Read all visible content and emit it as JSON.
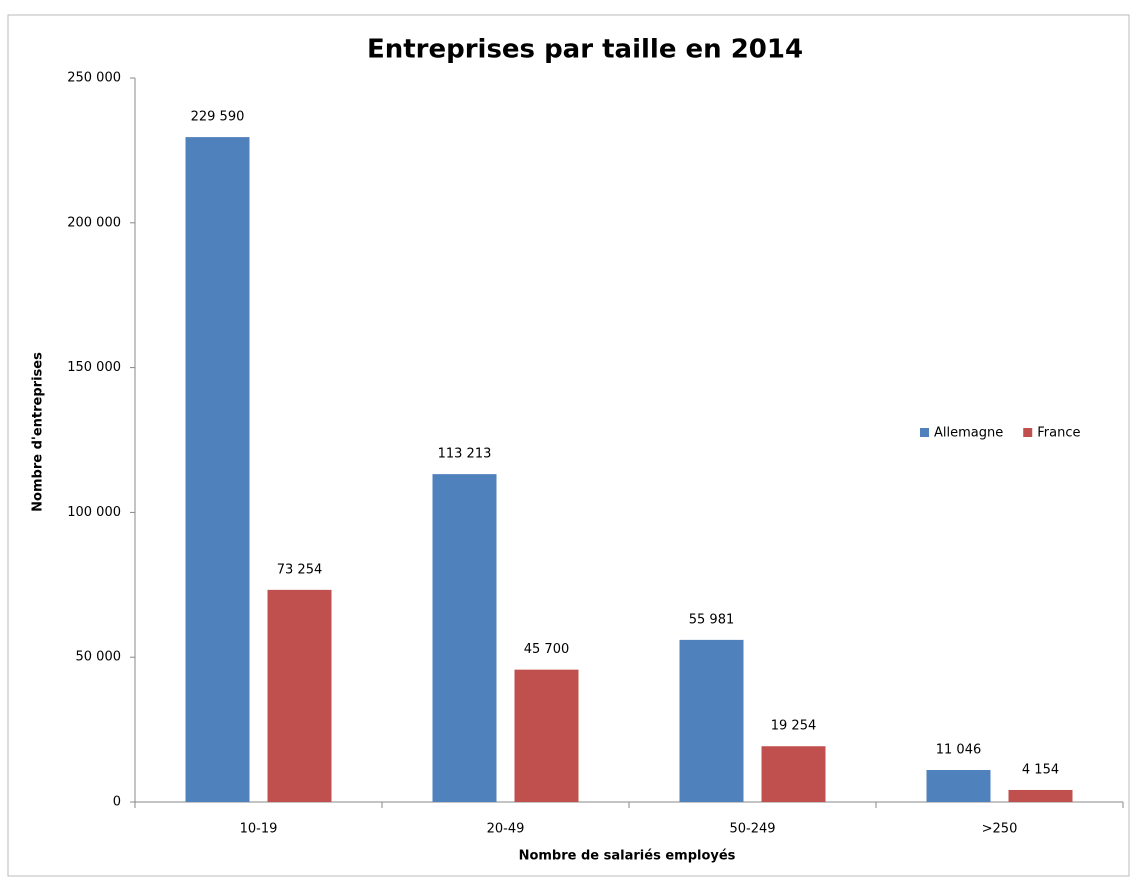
{
  "chart_data": {
    "type": "bar",
    "title": "Entreprises par taille en 2014",
    "xlabel": "Nombre de salariés  employés",
    "ylabel": "Nombre d'entreprises",
    "categories": [
      "10-19",
      "20-49",
      "50-249",
      ">250"
    ],
    "series": [
      {
        "name": "Allemagne",
        "color": "#4f81bd",
        "values": [
          229590,
          113213,
          55981,
          11046
        ],
        "value_labels": [
          "229 590",
          "113 213",
          "55 981",
          "11 046"
        ]
      },
      {
        "name": "France",
        "color": "#c0504d",
        "values": [
          73254,
          45700,
          19254,
          4154
        ],
        "value_labels": [
          "73 254",
          "45 700",
          "19 254",
          "4 154"
        ]
      }
    ],
    "ylim": [
      0,
      250000
    ],
    "yticks": [
      0,
      {
        "value": 50000,
        "label": "50 000"
      },
      {
        "value": 100000,
        "label": "100 000"
      },
      {
        "value": 150000,
        "label": "150 000"
      },
      {
        "value": 200000,
        "label": "200 000"
      },
      {
        "value": 250000,
        "label": "250 000"
      }
    ],
    "legend": "right"
  }
}
